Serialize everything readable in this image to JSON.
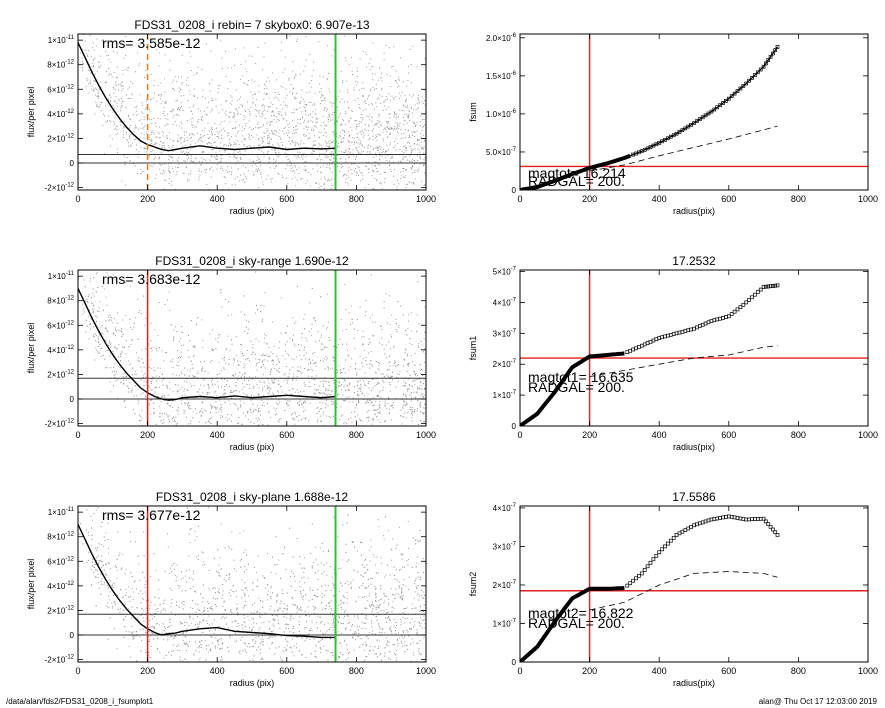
{
  "footer": {
    "left": "/data/alan/fds2/FDS31_0208_i_fsumplot1",
    "right": "alan@  Thu Oct 17 12:03:00 2019"
  },
  "colors": {
    "scatter": "#9a9a9a",
    "profile": "#000000",
    "red_marker": "#e02020",
    "green_marker": "#30c030",
    "orange_marker": "#e08020"
  },
  "chart_data": [
    {
      "type": "scatter",
      "title": "FDS31_0208_i rebin= 7    skybox0:  6.907e-13",
      "rms_label": "rms= 3.585e-12",
      "xlabel": "radius (pix)",
      "ylabel": "flux/per pixel",
      "xlim": [
        0,
        1000
      ],
      "ylim": [
        -2.2e-12,
        1.05e-11
      ],
      "xticks": [
        "0",
        "200",
        "400",
        "600",
        "800",
        "1000"
      ],
      "yticks": [
        {
          "v": 1e-11,
          "base": "1×10",
          "exp": "-11"
        },
        {
          "v": 8e-12,
          "base": "8×10",
          "exp": "-12"
        },
        {
          "v": 6e-12,
          "base": "6×10",
          "exp": "-12"
        },
        {
          "v": 4e-12,
          "base": "4×10",
          "exp": "-12"
        },
        {
          "v": 2e-12,
          "base": "2×10",
          "exp": "-12"
        },
        {
          "v": 0,
          "base": "0",
          "exp": ""
        },
        {
          "v": -2e-12,
          "base": "-2×10",
          "exp": "-12"
        }
      ],
      "hlines": [
        0,
        6.9e-13
      ],
      "vline_green": 740,
      "vline_marker": {
        "x": 200,
        "style": "orange-dashed"
      },
      "profile": [
        [
          0,
          9.8e-12
        ],
        [
          20,
          8.6e-12
        ],
        [
          40,
          7.4e-12
        ],
        [
          60,
          6.3e-12
        ],
        [
          80,
          5.3e-12
        ],
        [
          100,
          4.4e-12
        ],
        [
          120,
          3.6e-12
        ],
        [
          140,
          2.9e-12
        ],
        [
          160,
          2.3e-12
        ],
        [
          180,
          1.8e-12
        ],
        [
          200,
          1.5e-12
        ],
        [
          220,
          1.3e-12
        ],
        [
          240,
          1.1e-12
        ],
        [
          260,
          1e-12
        ],
        [
          280,
          1.1e-12
        ],
        [
          300,
          1.2e-12
        ],
        [
          350,
          1.4e-12
        ],
        [
          400,
          1.2e-12
        ],
        [
          450,
          1.1e-12
        ],
        [
          500,
          1.2e-12
        ],
        [
          550,
          1.3e-12
        ],
        [
          600,
          1.1e-12
        ],
        [
          650,
          1.2e-12
        ],
        [
          700,
          1.15e-12
        ],
        [
          740,
          1.2e-12
        ]
      ]
    },
    {
      "type": "line",
      "title": "",
      "ylabel": "fsum",
      "xlabel": "radius(pix)",
      "xlim": [
        0,
        1000
      ],
      "ylim": [
        0,
        2.05e-06
      ],
      "xticks": [
        "0",
        "200",
        "400",
        "600",
        "800",
        "1000"
      ],
      "yticks": [
        {
          "v": 0,
          "base": "0",
          "exp": ""
        },
        {
          "v": 5e-07,
          "base": "5.0×10",
          "exp": "-7"
        },
        {
          "v": 1e-06,
          "base": "1.0×10",
          "exp": "-6"
        },
        {
          "v": 1.5e-06,
          "base": "1.5×10",
          "exp": "-6"
        },
        {
          "v": 2e-06,
          "base": "2.0×10",
          "exp": "-6"
        }
      ],
      "vline_red": 200,
      "hline_red": 3.1e-07,
      "mag_label": "magtot= 16.214",
      "radgal_label": "RADGAL=    200.",
      "fsum": [
        [
          0,
          0
        ],
        [
          50,
          4e-08
        ],
        [
          100,
          1.2e-07
        ],
        [
          150,
          2.1e-07
        ],
        [
          200,
          2.9e-07
        ],
        [
          250,
          3.5e-07
        ],
        [
          300,
          4.2e-07
        ],
        [
          350,
          5.1e-07
        ],
        [
          400,
          6.2e-07
        ],
        [
          450,
          7.4e-07
        ],
        [
          500,
          8.8e-07
        ],
        [
          550,
          1.03e-06
        ],
        [
          600,
          1.2e-06
        ],
        [
          650,
          1.4e-06
        ],
        [
          700,
          1.62e-06
        ],
        [
          740,
          1.88e-06
        ]
      ],
      "dashed": [
        [
          200,
          2.5e-07
        ],
        [
          300,
          3.3e-07
        ],
        [
          400,
          4.5e-07
        ],
        [
          500,
          5.6e-07
        ],
        [
          600,
          6.7e-07
        ],
        [
          700,
          7.9e-07
        ],
        [
          740,
          8.4e-07
        ]
      ]
    },
    {
      "type": "scatter",
      "title": "FDS31_0208_i sky-range  1.690e-12",
      "rms_label": "rms= 3.683e-12",
      "xlabel": "radius (pix)",
      "ylabel": "flux/per pixel",
      "xlim": [
        0,
        1000
      ],
      "ylim": [
        -2.2e-12,
        1.05e-11
      ],
      "xticks": [
        "0",
        "200",
        "400",
        "600",
        "800",
        "1000"
      ],
      "yticks": [
        {
          "v": 1e-11,
          "base": "1×10",
          "exp": "-11"
        },
        {
          "v": 8e-12,
          "base": "8×10",
          "exp": "-12"
        },
        {
          "v": 6e-12,
          "base": "6×10",
          "exp": "-12"
        },
        {
          "v": 4e-12,
          "base": "4×10",
          "exp": "-12"
        },
        {
          "v": 2e-12,
          "base": "2×10",
          "exp": "-12"
        },
        {
          "v": 0,
          "base": "0",
          "exp": ""
        },
        {
          "v": -2e-12,
          "base": "-2×10",
          "exp": "-12"
        }
      ],
      "hlines": [
        0,
        1.69e-12
      ],
      "vline_green": 740,
      "vline_marker": {
        "x": 200,
        "style": "red-solid"
      },
      "profile": [
        [
          0,
          9e-12
        ],
        [
          20,
          7.8e-12
        ],
        [
          40,
          6.6e-12
        ],
        [
          60,
          5.5e-12
        ],
        [
          80,
          4.5e-12
        ],
        [
          100,
          3.6e-12
        ],
        [
          120,
          2.8e-12
        ],
        [
          140,
          2.1e-12
        ],
        [
          160,
          1.5e-12
        ],
        [
          180,
          9e-13
        ],
        [
          200,
          5e-13
        ],
        [
          220,
          2e-13
        ],
        [
          240,
          0
        ],
        [
          260,
          -1e-13
        ],
        [
          280,
          -5e-14
        ],
        [
          300,
          1e-13
        ],
        [
          350,
          2e-13
        ],
        [
          400,
          1e-13
        ],
        [
          450,
          2.5e-13
        ],
        [
          500,
          1e-13
        ],
        [
          550,
          2e-13
        ],
        [
          600,
          3e-13
        ],
        [
          650,
          2e-13
        ],
        [
          700,
          1e-13
        ],
        [
          740,
          2e-13
        ]
      ]
    },
    {
      "type": "line",
      "title": "17.2532",
      "ylabel": "fsum1",
      "xlabel": "radius(pix)",
      "xlim": [
        0,
        1000
      ],
      "ylim": [
        0,
        5.05e-07
      ],
      "xticks": [
        "0",
        "200",
        "400",
        "600",
        "800",
        "1000"
      ],
      "yticks": [
        {
          "v": 0,
          "base": "0",
          "exp": ""
        },
        {
          "v": 1e-07,
          "base": "1×10",
          "exp": "-7"
        },
        {
          "v": 2e-07,
          "base": "2×10",
          "exp": "-7"
        },
        {
          "v": 3e-07,
          "base": "3×10",
          "exp": "-7"
        },
        {
          "v": 4e-07,
          "base": "4×10",
          "exp": "-7"
        },
        {
          "v": 5e-07,
          "base": "5×10",
          "exp": "-7"
        }
      ],
      "vline_red": 200,
      "hline_red": 2.2e-07,
      "mag_label": "magtot1= 16.635",
      "radgal_label": "RADGAL=    200.",
      "fsum": [
        [
          0,
          0
        ],
        [
          50,
          4e-08
        ],
        [
          100,
          1.1e-07
        ],
        [
          150,
          1.9e-07
        ],
        [
          200,
          2.25e-07
        ],
        [
          250,
          2.3e-07
        ],
        [
          300,
          2.35e-07
        ],
        [
          350,
          2.6e-07
        ],
        [
          400,
          2.85e-07
        ],
        [
          450,
          3e-07
        ],
        [
          500,
          3.15e-07
        ],
        [
          550,
          3.4e-07
        ],
        [
          600,
          3.55e-07
        ],
        [
          650,
          4e-07
        ],
        [
          700,
          4.5e-07
        ],
        [
          740,
          4.55e-07
        ]
      ],
      "dashed": [
        [
          200,
          1.6e-07
        ],
        [
          300,
          1.8e-07
        ],
        [
          400,
          2e-07
        ],
        [
          500,
          2.2e-07
        ],
        [
          600,
          2.3e-07
        ],
        [
          700,
          2.55e-07
        ],
        [
          740,
          2.6e-07
        ]
      ]
    },
    {
      "type": "scatter",
      "title": "FDS31_0208_i sky-plane  1.688e-12",
      "rms_label": "rms= 3.677e-12",
      "xlabel": "radius (pix)",
      "ylabel": "flux/per pixel",
      "xlim": [
        0,
        1000
      ],
      "ylim": [
        -2.2e-12,
        1.05e-11
      ],
      "xticks": [
        "0",
        "200",
        "400",
        "600",
        "800",
        "1000"
      ],
      "yticks": [
        {
          "v": 1e-11,
          "base": "1×10",
          "exp": "-11"
        },
        {
          "v": 8e-12,
          "base": "8×10",
          "exp": "-12"
        },
        {
          "v": 6e-12,
          "base": "6×10",
          "exp": "-12"
        },
        {
          "v": 4e-12,
          "base": "4×10",
          "exp": "-12"
        },
        {
          "v": 2e-12,
          "base": "2×10",
          "exp": "-12"
        },
        {
          "v": 0,
          "base": "0",
          "exp": ""
        },
        {
          "v": -2e-12,
          "base": "-2×10",
          "exp": "-12"
        }
      ],
      "hlines": [
        0,
        1.69e-12
      ],
      "vline_green": 740,
      "vline_marker": {
        "x": 200,
        "style": "red-solid"
      },
      "profile": [
        [
          0,
          9e-12
        ],
        [
          20,
          7.8e-12
        ],
        [
          40,
          6.6e-12
        ],
        [
          60,
          5.5e-12
        ],
        [
          80,
          4.5e-12
        ],
        [
          100,
          3.6e-12
        ],
        [
          120,
          2.8e-12
        ],
        [
          140,
          2.1e-12
        ],
        [
          160,
          1.5e-12
        ],
        [
          180,
          9e-13
        ],
        [
          200,
          5e-13
        ],
        [
          220,
          2e-13
        ],
        [
          240,
          0
        ],
        [
          260,
          1e-13
        ],
        [
          280,
          1.5e-13
        ],
        [
          300,
          3e-13
        ],
        [
          350,
          5e-13
        ],
        [
          400,
          6e-13
        ],
        [
          450,
          3e-13
        ],
        [
          500,
          2e-13
        ],
        [
          550,
          1e-13
        ],
        [
          600,
          -5e-14
        ],
        [
          650,
          -1e-13
        ],
        [
          700,
          -2e-13
        ],
        [
          740,
          -2e-13
        ]
      ]
    },
    {
      "type": "line",
      "title": "17.5586",
      "ylabel": "fsum2",
      "xlabel": "radius(pix)",
      "xlim": [
        0,
        1000
      ],
      "ylim": [
        0,
        4.05e-07
      ],
      "xticks": [
        "0",
        "200",
        "400",
        "600",
        "800",
        "1000"
      ],
      "yticks": [
        {
          "v": 0,
          "base": "0",
          "exp": ""
        },
        {
          "v": 1e-07,
          "base": "1×10",
          "exp": "-7"
        },
        {
          "v": 2e-07,
          "base": "2×10",
          "exp": "-7"
        },
        {
          "v": 3e-07,
          "base": "3×10",
          "exp": "-7"
        },
        {
          "v": 4e-07,
          "base": "4×10",
          "exp": "-7"
        }
      ],
      "vline_red": 200,
      "hline_red": 1.85e-07,
      "mag_label": "magtot2= 16.822",
      "radgal_label": "RADGAL=    200.",
      "fsum": [
        [
          0,
          0
        ],
        [
          50,
          4e-08
        ],
        [
          100,
          1.05e-07
        ],
        [
          150,
          1.65e-07
        ],
        [
          200,
          1.9e-07
        ],
        [
          250,
          1.9e-07
        ],
        [
          300,
          1.92e-07
        ],
        [
          350,
          2.3e-07
        ],
        [
          400,
          2.85e-07
        ],
        [
          450,
          3.3e-07
        ],
        [
          500,
          3.55e-07
        ],
        [
          550,
          3.7e-07
        ],
        [
          600,
          3.78e-07
        ],
        [
          650,
          3.7e-07
        ],
        [
          700,
          3.72e-07
        ],
        [
          740,
          3.3e-07
        ]
      ],
      "dashed": [
        [
          200,
          1.35e-07
        ],
        [
          300,
          1.55e-07
        ],
        [
          400,
          2e-07
        ],
        [
          500,
          2.3e-07
        ],
        [
          600,
          2.35e-07
        ],
        [
          700,
          2.3e-07
        ],
        [
          740,
          2.2e-07
        ]
      ]
    }
  ]
}
